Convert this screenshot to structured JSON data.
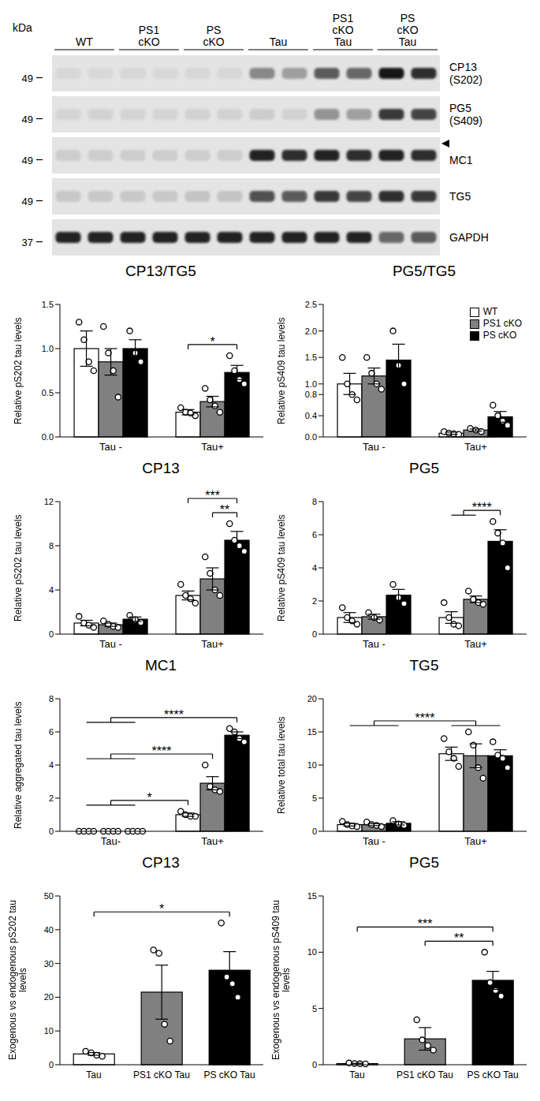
{
  "blot": {
    "unit": "kDa",
    "groups": [
      [
        "WT"
      ],
      [
        "PS1",
        "cKO"
      ],
      [
        "PS",
        "cKO"
      ],
      [
        "Tau"
      ],
      [
        "PS1",
        "cKO",
        "Tau"
      ],
      [
        "PS",
        "cKO",
        "Tau"
      ]
    ],
    "rows": [
      {
        "label": [
          "CP13",
          "(S202)"
        ],
        "marker": 49,
        "intensity": [
          0.06,
          0.05,
          0.06,
          0.05,
          0.06,
          0.06,
          0.4,
          0.3,
          0.6,
          0.55,
          0.9,
          0.8
        ]
      },
      {
        "label": [
          "PG5",
          "(S409)"
        ],
        "marker": 49,
        "intensity": [
          0.07,
          0.08,
          0.07,
          0.07,
          0.08,
          0.08,
          0.1,
          0.08,
          0.35,
          0.3,
          0.75,
          0.7
        ]
      },
      {
        "label": [
          "MC1"
        ],
        "marker": 49,
        "arrow": true,
        "intensity": [
          0.1,
          0.1,
          0.1,
          0.1,
          0.1,
          0.1,
          0.85,
          0.8,
          0.85,
          0.8,
          0.85,
          0.8
        ]
      },
      {
        "label": [
          "TG5"
        ],
        "marker": 49,
        "intensity": [
          0.12,
          0.12,
          0.12,
          0.12,
          0.14,
          0.14,
          0.65,
          0.6,
          0.75,
          0.7,
          0.8,
          0.75
        ]
      },
      {
        "label": [
          "GAPDH"
        ],
        "marker": 37,
        "intensity": [
          0.85,
          0.85,
          0.85,
          0.85,
          0.85,
          0.85,
          0.85,
          0.85,
          0.85,
          0.85,
          0.55,
          0.6
        ]
      }
    ]
  },
  "chart_data": [
    {
      "type": "bar",
      "title": "CP13/TG5",
      "y_label": "Relative pS202 tau levels",
      "categories": [
        "Tau -",
        "Tau+"
      ],
      "series": [
        {
          "name": "WT",
          "color": "#ffffff",
          "values": [
            1.0,
            0.28
          ],
          "errors": [
            0.2,
            0.03
          ],
          "points": [
            [
              1.3,
              1.1,
              0.85,
              0.75
            ],
            [
              0.33,
              0.28,
              0.27,
              0.24
            ]
          ]
        },
        {
          "name": "PS1 cKO",
          "color": "#808080",
          "values": [
            0.85,
            0.4
          ],
          "errors": [
            0.15,
            0.06
          ],
          "points": [
            [
              1.25,
              0.95,
              0.75,
              0.45
            ],
            [
              0.55,
              0.42,
              0.35,
              0.28
            ]
          ]
        },
        {
          "name": "PS cKO",
          "color": "#000000",
          "values": [
            1.0,
            0.73
          ],
          "errors": [
            0.1,
            0.08
          ],
          "points": [
            [
              1.2,
              0.95,
              0.85
            ],
            [
              0.92,
              0.75,
              0.65,
              0.6
            ]
          ]
        }
      ],
      "ylim": [
        0,
        1.5
      ],
      "yticks": [
        {
          "value": 0,
          "label": "0.0"
        },
        0.5,
        {
          "value": 1,
          "label": "1.0"
        },
        1.5
      ],
      "annotations": [
        {
          "from": [
            {
              "category": "Tau+",
              "series": "WT"
            }
          ],
          "to": [
            {
              "category": "Tau+",
              "series": "PS cKO"
            }
          ],
          "text": "*"
        }
      ]
    },
    {
      "type": "bar",
      "title": "PG5/TG5",
      "y_label": "Relative pS409 tau levels",
      "legend": "upper right",
      "categories": [
        "Tau -",
        "Tau+"
      ],
      "series": [
        {
          "name": "WT",
          "color": "#ffffff",
          "values": [
            1.0,
            0.07
          ],
          "errors": [
            0.2,
            0.02
          ],
          "points": [
            [
              1.5,
              1.0,
              0.8,
              0.7
            ],
            [
              0.1,
              0.07,
              0.06,
              0.05
            ]
          ]
        },
        {
          "name": "PS1 cKO",
          "color": "#808080",
          "values": [
            1.15,
            0.13
          ],
          "errors": [
            0.15,
            0.02
          ],
          "points": [
            [
              1.5,
              1.2,
              1.0,
              0.9
            ],
            [
              0.16,
              0.13,
              0.1
            ]
          ]
        },
        {
          "name": "PS cKO",
          "color": "#000000",
          "values": [
            1.45,
            0.38
          ],
          "errors": [
            0.3,
            0.1
          ],
          "points": [
            [
              2.0,
              1.35,
              1.0
            ],
            [
              0.6,
              0.4,
              0.3,
              0.22
            ]
          ]
        }
      ],
      "ylim": [
        0,
        2.5
      ],
      "yticks": [
        {
          "value": 0,
          "label": "0.0"
        },
        0.4,
        0.8,
        {
          "value": 1,
          "label": "1.0"
        },
        1.5,
        {
          "value": 2,
          "label": "2.0"
        },
        2.5
      ]
    },
    {
      "type": "bar",
      "title": "CP13",
      "y_label": "Relative pS202 tau levels",
      "categories": [
        "Tau -",
        "Tau+"
      ],
      "series": [
        {
          "name": "WT",
          "color": "#ffffff",
          "values": [
            1.0,
            3.5
          ],
          "errors": [
            0.25,
            0.4
          ],
          "points": [
            [
              1.6,
              1.0,
              0.8,
              0.6
            ],
            [
              4.5,
              3.5,
              3.2,
              2.8
            ]
          ]
        },
        {
          "name": "PS1 cKO",
          "color": "#808080",
          "values": [
            0.85,
            5.0
          ],
          "errors": [
            0.15,
            1.0
          ],
          "points": [
            [
              1.2,
              0.9,
              0.7,
              0.6
            ],
            [
              7.0,
              5.5,
              4.0,
              3.5
            ]
          ]
        },
        {
          "name": "PS cKO",
          "color": "#000000",
          "values": [
            1.35,
            8.5
          ],
          "errors": [
            0.2,
            0.8
          ],
          "points": [
            [
              1.7,
              1.3,
              1.05
            ],
            [
              10.0,
              8.5,
              8.0,
              7.5
            ]
          ]
        }
      ],
      "ylim": [
        0,
        12
      ],
      "yticks": [
        0,
        4,
        8,
        12
      ],
      "annotations": [
        {
          "from": [
            {
              "category": "Tau+",
              "series": "PS1 cKO"
            }
          ],
          "to": [
            {
              "category": "Tau+",
              "series": "PS cKO"
            }
          ],
          "text": "**"
        },
        {
          "from": [
            {
              "category": "Tau+",
              "series": "WT"
            }
          ],
          "to": [
            {
              "category": "Tau+",
              "series": "PS cKO"
            }
          ],
          "text": "***"
        }
      ]
    },
    {
      "type": "bar",
      "title": "PG5",
      "y_label": "Relative pS409 tau levels",
      "categories": [
        "Tau -",
        "Tau+"
      ],
      "series": [
        {
          "name": "WT",
          "color": "#ffffff",
          "values": [
            1.0,
            1.0
          ],
          "errors": [
            0.3,
            0.35
          ],
          "points": [
            [
              1.6,
              1.0,
              0.8,
              0.6
            ],
            [
              1.9,
              1.0,
              0.6,
              0.5
            ]
          ]
        },
        {
          "name": "PS1 cKO",
          "color": "#808080",
          "values": [
            1.05,
            2.1
          ],
          "errors": [
            0.15,
            0.2
          ],
          "points": [
            [
              1.3,
              1.0,
              0.85
            ],
            [
              2.6,
              2.1,
              1.9,
              1.8
            ]
          ]
        },
        {
          "name": "PS cKO",
          "color": "#000000",
          "values": [
            2.35,
            5.6
          ],
          "errors": [
            0.35,
            0.7
          ],
          "points": [
            [
              3.0,
              2.2,
              1.85
            ],
            [
              6.8,
              6.1,
              5.5,
              4.0
            ]
          ]
        }
      ],
      "ylim": [
        0,
        8
      ],
      "yticks": [
        0,
        2,
        4,
        6,
        8
      ],
      "annotations": [
        {
          "from": [
            {
              "category": "Tau+",
              "series": "WT"
            },
            {
              "category": "Tau+",
              "series": "PS1 cKO"
            }
          ],
          "to": [
            {
              "category": "Tau+",
              "series": "PS cKO"
            }
          ],
          "text": "****"
        }
      ]
    },
    {
      "type": "bar",
      "title": "MC1",
      "y_label": "Relative aggregated tau levels",
      "categories": [
        "Tau-",
        "Tau+"
      ],
      "series": [
        {
          "name": "WT",
          "color": "#ffffff",
          "values": [
            0,
            1.0
          ],
          "errors": [
            0,
            0.1
          ],
          "points": [
            [
              0,
              0,
              0,
              0
            ],
            [
              1.2,
              1.0,
              0.9,
              0.9
            ]
          ]
        },
        {
          "name": "PS1 cKO",
          "color": "#808080",
          "values": [
            0,
            2.9
          ],
          "errors": [
            0,
            0.4
          ],
          "points": [
            [
              0,
              0,
              0,
              0
            ],
            [
              4.0,
              2.7,
              2.5,
              2.4
            ]
          ]
        },
        {
          "name": "PS cKO",
          "color": "#000000",
          "values": [
            0,
            5.8
          ],
          "errors": [
            0,
            0.2
          ],
          "points": [
            [
              0,
              0,
              0,
              0
            ],
            [
              6.2,
              6.0,
              5.6,
              5.4
            ]
          ]
        }
      ],
      "ylim": [
        0,
        8
      ],
      "yticks": [
        0,
        2,
        4,
        6,
        8
      ],
      "annotations": [
        {
          "from": [
            {
              "category": "Tau-"
            }
          ],
          "to": [
            {
              "category": "Tau+",
              "series": "WT"
            }
          ],
          "text": "*"
        },
        {
          "from": [
            {
              "category": "Tau-"
            }
          ],
          "to": [
            {
              "category": "Tau+",
              "series": "PS1 cKO"
            }
          ],
          "text": "****"
        },
        {
          "from": [
            {
              "category": "Tau-"
            }
          ],
          "to": [
            {
              "category": "Tau+",
              "series": "PS cKO"
            }
          ],
          "text": "****"
        }
      ]
    },
    {
      "type": "bar",
      "title": "TG5",
      "y_label": "Relative total tau levels",
      "categories": [
        "Tau -",
        "Tau+"
      ],
      "series": [
        {
          "name": "WT",
          "color": "#ffffff",
          "values": [
            1.0,
            11.7
          ],
          "errors": [
            0.2,
            1.0
          ],
          "points": [
            [
              1.5,
              1.0,
              0.8,
              0.7
            ],
            [
              14.0,
              12.0,
              11.0,
              9.8
            ]
          ]
        },
        {
          "name": "PS1 cKO",
          "color": "#808080",
          "values": [
            1.0,
            11.4
          ],
          "errors": [
            0.15,
            1.8
          ],
          "points": [
            [
              1.4,
              1.0,
              0.9,
              0.7
            ],
            [
              15.0,
              13.0,
              9.6,
              8.0
            ]
          ]
        },
        {
          "name": "PS cKO",
          "color": "#000000",
          "values": [
            1.2,
            11.4
          ],
          "errors": [
            0.25,
            0.9
          ],
          "points": [
            [
              1.6,
              1.1,
              0.9
            ],
            [
              13.5,
              11.5,
              11.0,
              9.6
            ]
          ]
        }
      ],
      "ylim": [
        0,
        20
      ],
      "yticks": [
        0,
        5,
        10,
        15,
        20
      ],
      "annotations": [
        {
          "from": [
            {
              "category": "Tau -"
            }
          ],
          "to": [
            {
              "category": "Tau+"
            }
          ],
          "text": "****"
        }
      ]
    },
    {
      "type": "bar",
      "title": "CP13",
      "y_label": "Exogenous vs endogenous pS202 tau levels",
      "categories": [
        "Tau",
        "PS1 cKO Tau",
        "PS cKO Tau"
      ],
      "values": [
        3.2,
        21.5,
        28.0
      ],
      "errors": [
        0.4,
        8.0,
        5.5
      ],
      "points": [
        [
          4.0,
          3.5,
          2.8,
          2.5
        ],
        [
          34.0,
          33.0,
          12.0,
          7.0
        ],
        [
          42.0,
          26.0,
          24.0,
          20.0
        ]
      ],
      "colors": [
        "#ffffff",
        "#808080",
        "#000000"
      ],
      "ylim": [
        0,
        50
      ],
      "yticks": [
        0,
        10,
        20,
        30,
        40,
        50
      ],
      "annotations": [
        {
          "from": [
            {
              "category": "Tau"
            }
          ],
          "to": [
            {
              "category": "PS cKO Tau"
            }
          ],
          "text": "*"
        }
      ]
    },
    {
      "type": "bar",
      "title": "PG5",
      "y_label": "Exogenous vs endogenous pS409 tau levels",
      "categories": [
        "Tau",
        "PS1 cKO Tau",
        "PS cKO Tau"
      ],
      "values": [
        0.1,
        2.3,
        7.5
      ],
      "errors": [
        0.03,
        1.0,
        0.8
      ],
      "points": [
        [
          0.15,
          0.1,
          0.08,
          0.07
        ],
        [
          4.0,
          2.2,
          1.7,
          1.3
        ],
        [
          10.0,
          7.3,
          6.6,
          6.1
        ]
      ],
      "colors": [
        "#ffffff",
        "#808080",
        "#000000"
      ],
      "ylim": [
        0,
        15
      ],
      "yticks": [
        0,
        5,
        10,
        15
      ],
      "annotations": [
        {
          "from": [
            {
              "category": "PS1 cKO Tau"
            }
          ],
          "to": [
            {
              "category": "PS cKO Tau"
            }
          ],
          "text": "**"
        },
        {
          "from": [
            {
              "category": "Tau"
            }
          ],
          "to": [
            {
              "category": "PS cKO Tau"
            }
          ],
          "text": "***"
        }
      ]
    }
  ]
}
